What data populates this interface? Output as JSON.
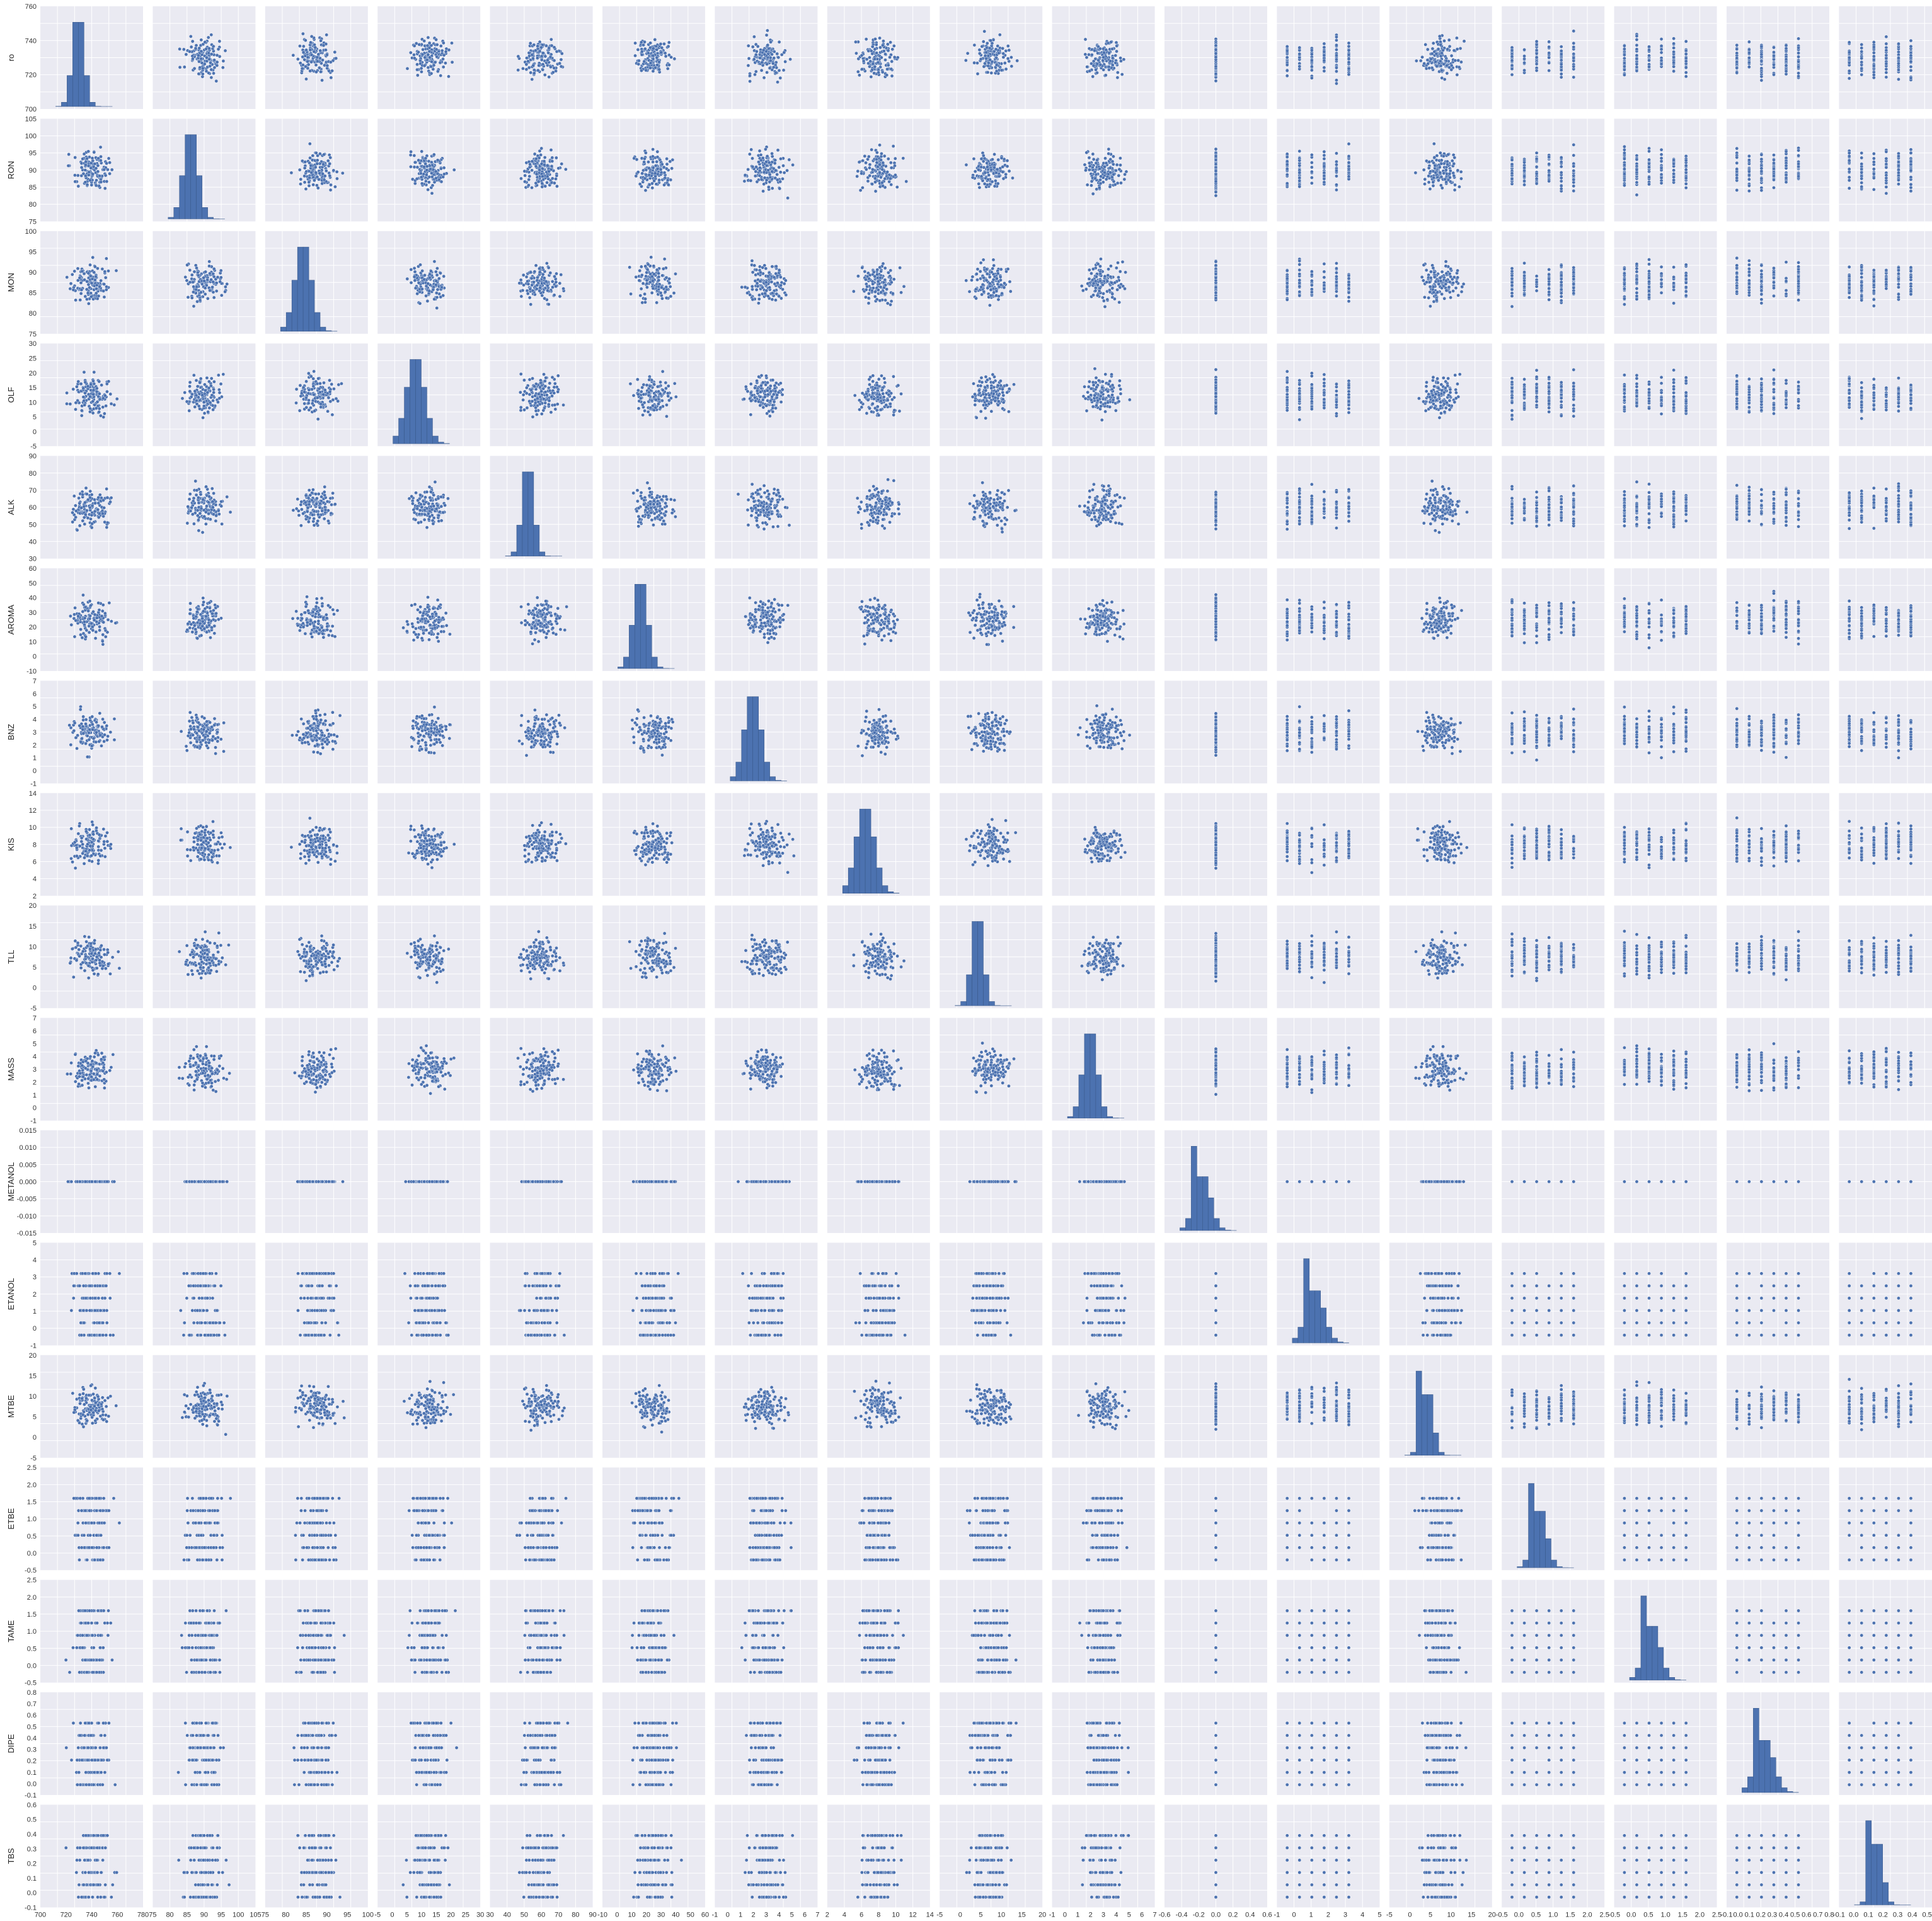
{
  "chart_data": {
    "type": "scatter",
    "variables": [
      "ro",
      "RON",
      "MON",
      "OLF",
      "ALK",
      "AROMA",
      "BNZ",
      "KIS",
      "TLL",
      "MASS",
      "METANOL",
      "ETANOL",
      "MTBE",
      "ETBE",
      "TAME",
      "DIPE",
      "TBS"
    ],
    "axis_ranges": {
      "ro": [
        695,
        780
      ],
      "RON": [
        75,
        105
      ],
      "MON": [
        75,
        100
      ],
      "OLF": [
        -5,
        30
      ],
      "ALK": [
        30,
        90
      ],
      "AROMA": [
        -10,
        60
      ],
      "BNZ": [
        -1,
        7
      ],
      "KIS": [
        2,
        14
      ],
      "TLL": [
        -5,
        20
      ],
      "MASS": [
        -1,
        7
      ],
      "METANOL": [
        -0.015,
        0.015
      ],
      "ETANOL": [
        -1,
        5
      ],
      "MTBE": [
        -5,
        20
      ],
      "ETBE": [
        -0.5,
        2.5
      ],
      "TAME": [
        -0.5,
        2.5
      ],
      "DIPE": [
        -0.1,
        0.8
      ],
      "TBS": [
        -0.1,
        0.6
      ]
    },
    "x_ticks": {
      "ro": [
        "700",
        "720",
        "740",
        "760",
        "780"
      ],
      "RON": [
        "75",
        "80",
        "85",
        "90",
        "95",
        "100",
        "105"
      ],
      "MON": [
        "75",
        "80",
        "85",
        "90",
        "95",
        "100"
      ],
      "OLF": [
        "-5",
        "0",
        "5",
        "10",
        "15",
        "20",
        "25",
        "30"
      ],
      "ALK": [
        "30",
        "40",
        "50",
        "60",
        "70",
        "80",
        "90"
      ],
      "AROMA": [
        "-10",
        "0",
        "10",
        "20",
        "30",
        "40",
        "50",
        "60"
      ],
      "BNZ": [
        "-1",
        "0",
        "1",
        "2",
        "3",
        "4",
        "5",
        "6",
        "7"
      ],
      "KIS": [
        "2",
        "4",
        "6",
        "8",
        "10",
        "12",
        "14"
      ],
      "TLL": [
        "-5",
        "0",
        "5",
        "10",
        "15",
        "20"
      ],
      "MASS": [
        "-1",
        "0",
        "1",
        "2",
        "3",
        "4",
        "5",
        "6",
        "7"
      ],
      "METANOL": [
        "-0.6",
        "-0.4",
        "-0.2",
        "0.0",
        "0.2",
        "0.4",
        "0.6"
      ],
      "ETANOL": [
        "-1",
        "0",
        "1",
        "2",
        "3",
        "4",
        "5"
      ],
      "MTBE": [
        "-5",
        "0",
        "5",
        "10",
        "15",
        "20"
      ],
      "ETBE": [
        "-0.5",
        "0.0",
        "0.5",
        "1.0",
        "1.5",
        "2.0",
        "2.5"
      ],
      "TAME": [
        "-0.5",
        "0.0",
        "0.5",
        "1.0",
        "1.5",
        "2.0",
        "2.5"
      ],
      "DIPE": [
        "-0.1",
        "0.0",
        "0.1",
        "0.2",
        "0.3",
        "0.4",
        "0.5",
        "0.6",
        "0.7",
        "0.8"
      ],
      "TBS": [
        "-0.1",
        "0.0",
        "0.1",
        "0.2",
        "0.3",
        "0.4",
        "0.5",
        "0.6"
      ]
    },
    "y_ticks": {
      "ro": [
        "700",
        "720",
        "740",
        "760"
      ],
      "RON": [
        "75",
        "80",
        "85",
        "90",
        "95",
        "100",
        "105"
      ],
      "MON": [
        "75",
        "80",
        "85",
        "90",
        "95",
        "100"
      ],
      "OLF": [
        "-5",
        "0",
        "5",
        "10",
        "15",
        "20",
        "25",
        "30"
      ],
      "ALK": [
        "30",
        "40",
        "50",
        "60",
        "70",
        "80",
        "90"
      ],
      "AROMA": [
        "-10",
        "0",
        "10",
        "20",
        "30",
        "40",
        "50",
        "60"
      ],
      "BNZ": [
        "-1",
        "0",
        "1",
        "2",
        "3",
        "4",
        "5",
        "6",
        "7"
      ],
      "KIS": [
        "2",
        "4",
        "6",
        "8",
        "10",
        "12",
        "14"
      ],
      "TLL": [
        "-5",
        "0",
        "5",
        "10",
        "15",
        "20"
      ],
      "MASS": [
        "-1",
        "0",
        "1",
        "2",
        "3",
        "4",
        "5",
        "6",
        "7"
      ],
      "METANOL": [
        "-0.015",
        "-0.010",
        "-0.005",
        "0.000",
        "0.005",
        "0.010",
        "0.015"
      ],
      "ETANOL": [
        "-1",
        "0",
        "1",
        "2",
        "3",
        "4",
        "5"
      ],
      "MTBE": [
        "-5",
        "0",
        "5",
        "10",
        "15",
        "20"
      ],
      "ETBE": [
        "-0.5",
        "0.0",
        "0.5",
        "1.0",
        "1.5",
        "2.0",
        "2.5"
      ],
      "TAME": [
        "-0.5",
        "0.0",
        "0.5",
        "1.0",
        "1.5",
        "2.0",
        "2.5"
      ],
      "DIPE": [
        "-0.1",
        "0.0",
        "0.1",
        "0.2",
        "0.3",
        "0.4",
        "0.5",
        "0.6",
        "0.7",
        "0.8"
      ],
      "TBS": [
        "-0.1",
        "0.0",
        "0.1",
        "0.2",
        "0.3",
        "0.4",
        "0.5",
        "0.6"
      ]
    },
    "diagonal": "histogram",
    "off_diagonal": "scatter",
    "grid": true,
    "legend": "none",
    "colors": {
      "marker": "#4c72b0",
      "marker_edge": "#ffffff",
      "panel_bg": "#eaeaf2",
      "gridline": "#ffffff"
    }
  }
}
